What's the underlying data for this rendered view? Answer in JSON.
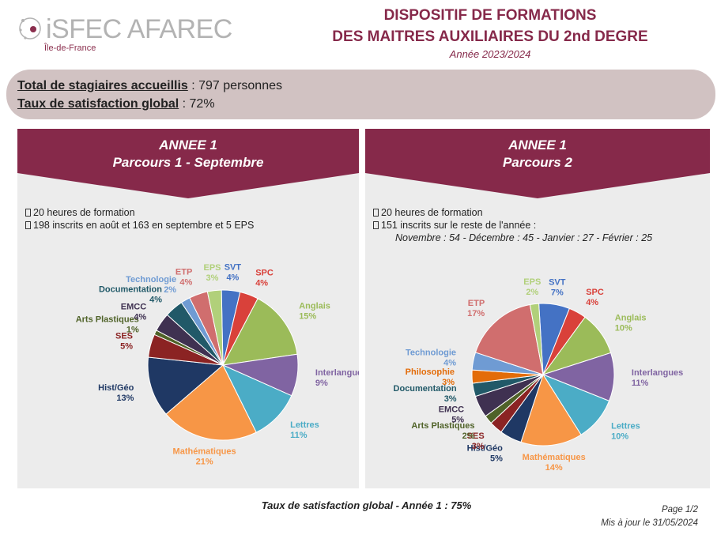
{
  "header": {
    "logo_text": "iSFEC AFAREC",
    "logo_sub": "Île-de-France",
    "title_line1": "DISPOSITIF DE FORMATIONS",
    "title_line2": "DES MAITRES AUXILIAIRES DU 2nd DEGRE",
    "year": "Année 2023/2024"
  },
  "summary": {
    "total_label": "Total de stagiaires accueillis",
    "total_value": " : 797 personnes",
    "satisfaction_label": "Taux de satisfaction global",
    "satisfaction_value": " : 72%"
  },
  "panels": [
    {
      "title1": "ANNEE 1",
      "title2": "Parcours 1 - Septembre",
      "bullet1": "20 heures de formation",
      "bullet2": "198 inscrits en août et 163 en septembre et 5 EPS",
      "bullet3": ""
    },
    {
      "title1": "ANNEE 1",
      "title2": "Parcours 2",
      "bullet1": "20 heures de formation",
      "bullet2": "151 inscrits sur le reste de l'année :",
      "bullet3": "Novembre : 54 - Décembre :  45 - Janvier :  27 - Février :  25"
    }
  ],
  "chart_data": [
    {
      "type": "pie",
      "title": "",
      "slices": [
        {
          "label": "SVT",
          "value": 4,
          "pct": "4%",
          "color": "#4472c4"
        },
        {
          "label": "SPC",
          "value": 4,
          "pct": "4%",
          "color": "#d9413a"
        },
        {
          "label": "Anglais",
          "value": 15,
          "pct": "15%",
          "color": "#9bbb59"
        },
        {
          "label": "Interlangues",
          "value": 9,
          "pct": "9%",
          "color": "#8064a2"
        },
        {
          "label": "Lettres",
          "value": 11,
          "pct": "11%",
          "color": "#4bacc6"
        },
        {
          "label": "Mathématiques",
          "value": 21,
          "pct": "21%",
          "color": "#f79646"
        },
        {
          "label": "Hist/Géo",
          "value": 13,
          "pct": "13%",
          "color": "#1f3864"
        },
        {
          "label": "SES",
          "value": 5,
          "pct": "5%",
          "color": "#8b2323"
        },
        {
          "label": "Arts Plastiques",
          "value": 1,
          "pct": "1%",
          "color": "#4f6228"
        },
        {
          "label": "EMCC",
          "value": 4,
          "pct": "4%",
          "color": "#3f3151"
        },
        {
          "label": "Documentation",
          "value": 4,
          "pct": "4%",
          "color": "#215968"
        },
        {
          "label": "Technologie",
          "value": 2,
          "pct": "2%",
          "color": "#6f9bd3"
        },
        {
          "label": "ETP",
          "value": 4,
          "pct": "4%",
          "color": "#d06e6e"
        },
        {
          "label": "EPS",
          "value": 3,
          "pct": "3%",
          "color": "#b1d07a"
        }
      ]
    },
    {
      "type": "pie",
      "title": "",
      "slices": [
        {
          "label": "SVT",
          "value": 7,
          "pct": "7%",
          "color": "#4472c4"
        },
        {
          "label": "SPC",
          "value": 4,
          "pct": "4%",
          "color": "#d9413a"
        },
        {
          "label": "Anglais",
          "value": 10,
          "pct": "10%",
          "color": "#9bbb59"
        },
        {
          "label": "Interlangues",
          "value": 11,
          "pct": "11%",
          "color": "#8064a2"
        },
        {
          "label": "Lettres",
          "value": 10,
          "pct": "10%",
          "color": "#4bacc6"
        },
        {
          "label": "Mathématiques",
          "value": 14,
          "pct": "14%",
          "color": "#f79646"
        },
        {
          "label": "Hist/Géo",
          "value": 5,
          "pct": "5%",
          "color": "#1f3864"
        },
        {
          "label": "SES",
          "value": 3,
          "pct": "3%",
          "color": "#8b2323"
        },
        {
          "label": "Arts Plastiques",
          "value": 2,
          "pct": "2%",
          "color": "#4f6228"
        },
        {
          "label": "EMCC",
          "value": 5,
          "pct": "5%",
          "color": "#3f3151"
        },
        {
          "label": "Documentation",
          "value": 3,
          "pct": "3%",
          "color": "#215968"
        },
        {
          "label": "Philosophie",
          "value": 3,
          "pct": "3%",
          "color": "#e36c09"
        },
        {
          "label": "Technologie",
          "value": 4,
          "pct": "4%",
          "color": "#6f9bd3"
        },
        {
          "label": "ETP",
          "value": 17,
          "pct": "17%",
          "color": "#d06e6e"
        },
        {
          "label": "EPS",
          "value": 2,
          "pct": "2%",
          "color": "#b1d07a"
        }
      ]
    }
  ],
  "footer": {
    "satisfaction": "Taux de satisfaction global - Année 1 : 75%",
    "page": "Page 1/2",
    "updated": "Mis à jour le 31/05/2024"
  },
  "colors": {
    "brand": "#86294a",
    "summary_bg": "#d1c2c2",
    "panel_bg": "#ececec"
  }
}
